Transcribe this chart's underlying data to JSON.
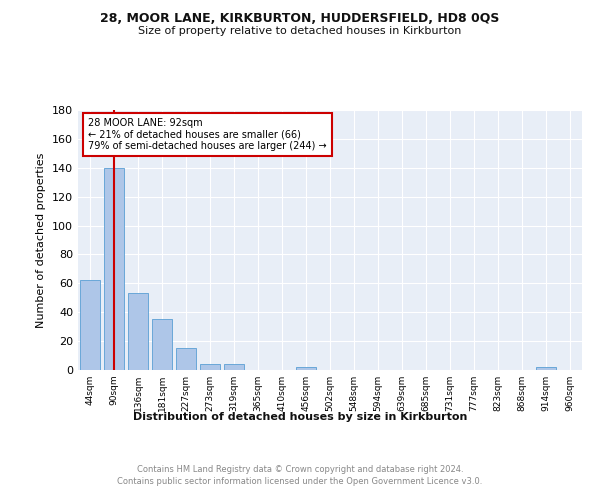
{
  "title1": "28, MOOR LANE, KIRKBURTON, HUDDERSFIELD, HD8 0QS",
  "title2": "Size of property relative to detached houses in Kirkburton",
  "xlabel": "Distribution of detached houses by size in Kirkburton",
  "ylabel": "Number of detached properties",
  "categories": [
    "44sqm",
    "90sqm",
    "136sqm",
    "181sqm",
    "227sqm",
    "273sqm",
    "319sqm",
    "365sqm",
    "410sqm",
    "456sqm",
    "502sqm",
    "548sqm",
    "594sqm",
    "639sqm",
    "685sqm",
    "731sqm",
    "777sqm",
    "823sqm",
    "868sqm",
    "914sqm",
    "960sqm"
  ],
  "values": [
    62,
    140,
    53,
    35,
    15,
    4,
    4,
    0,
    0,
    2,
    0,
    0,
    0,
    0,
    0,
    0,
    0,
    0,
    0,
    2,
    0
  ],
  "bar_color": "#aec6e8",
  "bar_edge_color": "#5a9fd4",
  "vline_x": 1.02,
  "vline_color": "#cc0000",
  "annotation_line1": "28 MOOR LANE: 92sqm",
  "annotation_line2": "← 21% of detached houses are smaller (66)",
  "annotation_line3": "79% of semi-detached houses are larger (244) →",
  "annotation_box_color": "#ffffff",
  "annotation_box_edge": "#cc0000",
  "ylim": [
    0,
    180
  ],
  "yticks": [
    0,
    20,
    40,
    60,
    80,
    100,
    120,
    140,
    160,
    180
  ],
  "footer1": "Contains HM Land Registry data © Crown copyright and database right 2024.",
  "footer2": "Contains public sector information licensed under the Open Government Licence v3.0.",
  "bg_color": "#e8eef7",
  "fig_bg_color": "#ffffff",
  "title1_fontsize": 9,
  "title2_fontsize": 8,
  "ylabel_fontsize": 8,
  "xlabel_fontsize": 8,
  "ytick_fontsize": 8,
  "xtick_fontsize": 6.5,
  "footer_fontsize": 6,
  "annot_fontsize": 7
}
